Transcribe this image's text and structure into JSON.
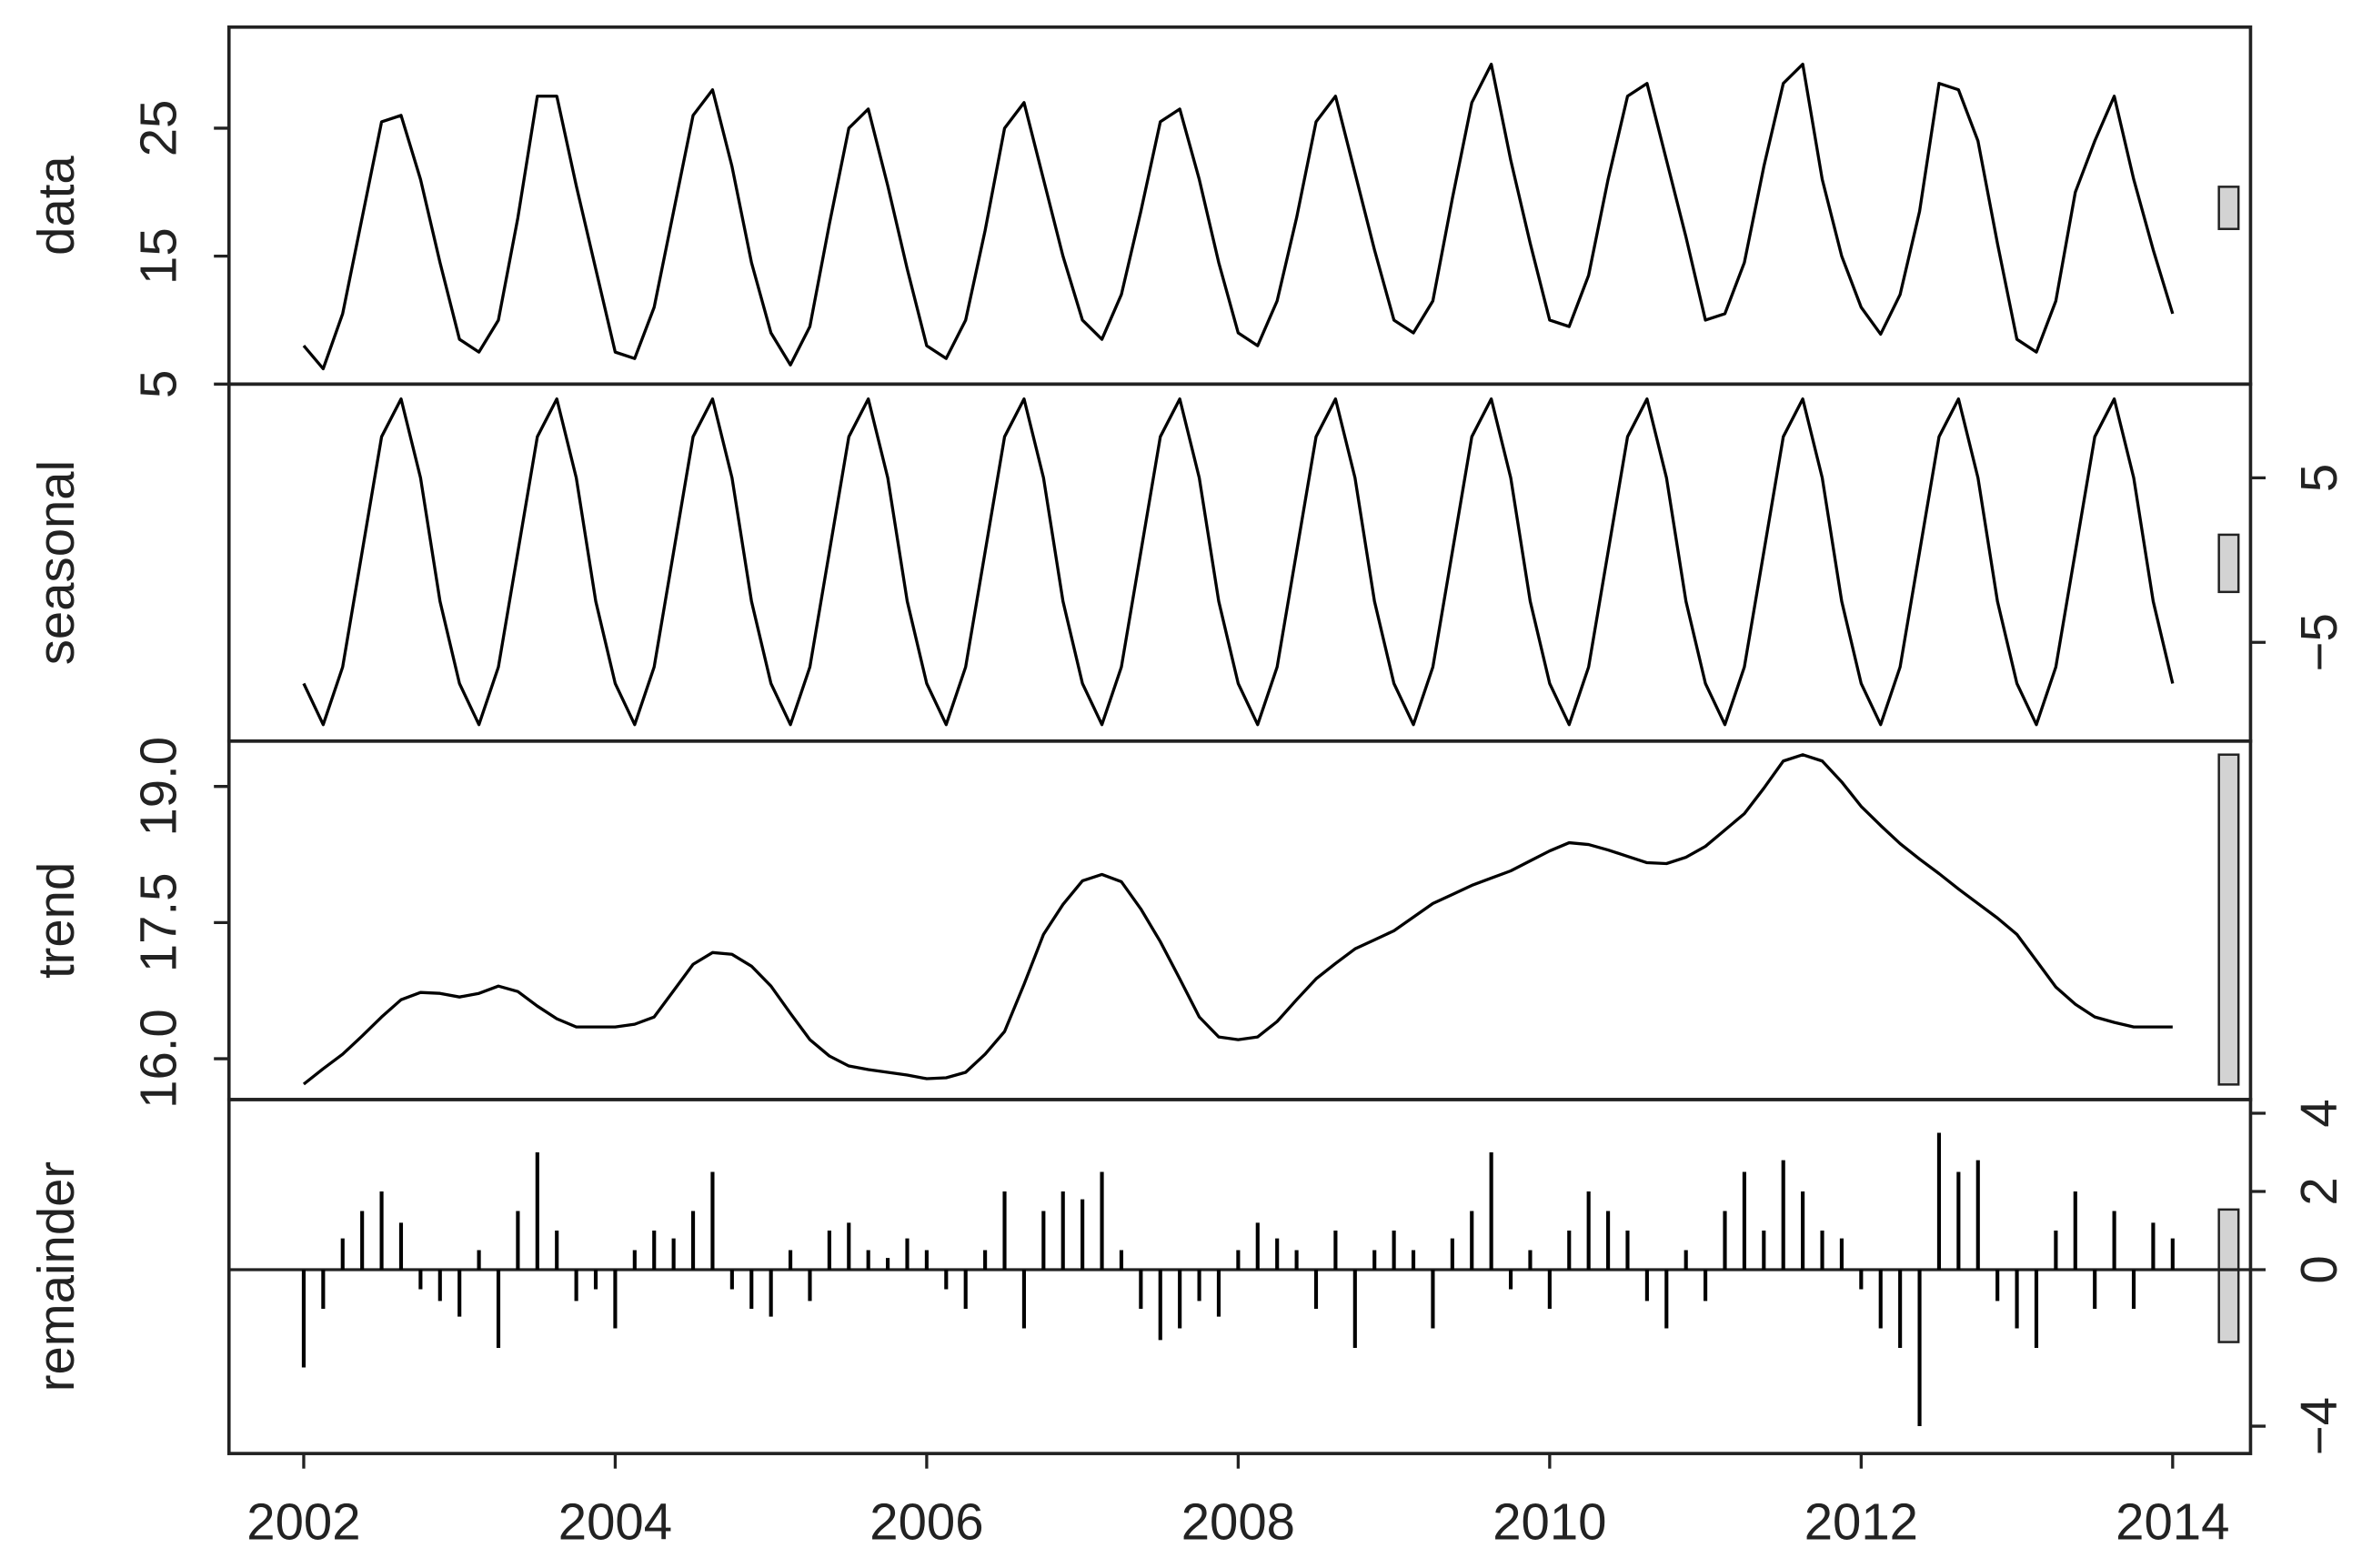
{
  "chart_data": {
    "type": "stl",
    "x": [
      2002,
      2002.125,
      2002.25,
      2002.375,
      2002.5,
      2002.625,
      2002.75,
      2002.875,
      2003,
      2003.125,
      2003.25,
      2003.375,
      2003.5,
      2003.625,
      2003.75,
      2003.875,
      2004,
      2004.125,
      2004.25,
      2004.375,
      2004.5,
      2004.625,
      2004.75,
      2004.875,
      2005,
      2005.125,
      2005.25,
      2005.375,
      2005.5,
      2005.625,
      2005.75,
      2005.875,
      2006,
      2006.125,
      2006.25,
      2006.375,
      2006.5,
      2006.625,
      2006.75,
      2006.875,
      2007,
      2007.125,
      2007.25,
      2007.375,
      2007.5,
      2007.625,
      2007.75,
      2007.875,
      2008,
      2008.125,
      2008.25,
      2008.375,
      2008.5,
      2008.625,
      2008.75,
      2008.875,
      2009,
      2009.125,
      2009.25,
      2009.375,
      2009.5,
      2009.625,
      2009.75,
      2009.875,
      2010,
      2010.125,
      2010.25,
      2010.375,
      2010.5,
      2010.625,
      2010.75,
      2010.875,
      2011,
      2011.125,
      2011.25,
      2011.375,
      2011.5,
      2011.625,
      2011.75,
      2011.875,
      2012,
      2012.125,
      2012.25,
      2012.375,
      2012.5,
      2012.625,
      2012.75,
      2012.875,
      2013,
      2013.125,
      2013.25,
      2013.375,
      2013.5,
      2013.625,
      2013.75,
      2013.875,
      2014
    ],
    "xlim": [
      2001.52,
      2014.5
    ],
    "xticks": [
      2002,
      2004,
      2006,
      2008,
      2010,
      2012,
      2014
    ],
    "color": "#000000",
    "panels": [
      {
        "label": "data",
        "axis_side": "left",
        "style": "line",
        "ylim": [
          5,
          32.9
        ],
        "yticks": [
          5,
          15,
          25
        ],
        "values": [
          8.0,
          6.2,
          10.5,
          18.0,
          25.5,
          26.0,
          21.0,
          14.5,
          8.5,
          7.5,
          10.0,
          18.0,
          27.5,
          27.5,
          20.5,
          14.0,
          7.5,
          7.0,
          11.0,
          18.5,
          26.0,
          28.0,
          22.0,
          14.5,
          9.0,
          6.5,
          9.5,
          17.5,
          25.0,
          26.5,
          20.5,
          14.0,
          8.0,
          7.0,
          10.0,
          17.0,
          25.0,
          27.0,
          21.0,
          15.0,
          10.0,
          8.5,
          12.0,
          18.5,
          25.5,
          26.5,
          21.0,
          14.5,
          9.0,
          8.0,
          11.5,
          18.0,
          25.5,
          27.5,
          21.5,
          15.5,
          10.0,
          9.0,
          11.5,
          19.5,
          27.0,
          30.0,
          22.5,
          16.0,
          10.0,
          9.5,
          13.5,
          21.0,
          27.5,
          28.5,
          22.5,
          16.5,
          10.0,
          10.5,
          14.5,
          22.0,
          28.5,
          30.0,
          21.0,
          15.0,
          11.0,
          8.9,
          12.0,
          18.5,
          28.5,
          28.0,
          24.0,
          16.0,
          8.5,
          7.5,
          11.5,
          20.0,
          24.0,
          27.5,
          21.0,
          15.5,
          10.5
        ]
      },
      {
        "label": "seasonal",
        "axis_side": "right",
        "style": "line",
        "ylim": [
          -11,
          10.7
        ],
        "yticks": [
          {
            "value": -5,
            "label": "−5"
          },
          5
        ],
        "values": [
          -7.5,
          -10.0,
          -6.5,
          0.5,
          7.5,
          9.8,
          5.0,
          -2.5,
          -7.5,
          -10.0,
          -6.5,
          0.5,
          7.5,
          9.8,
          5.0,
          -2.5,
          -7.5,
          -10.0,
          -6.5,
          0.5,
          7.5,
          9.8,
          5.0,
          -2.5,
          -7.5,
          -10.0,
          -6.5,
          0.5,
          7.5,
          9.8,
          5.0,
          -2.5,
          -7.5,
          -10.0,
          -6.5,
          0.5,
          7.5,
          9.8,
          5.0,
          -2.5,
          -7.5,
          -10.0,
          -6.5,
          0.5,
          7.5,
          9.8,
          5.0,
          -2.5,
          -7.5,
          -10.0,
          -6.5,
          0.5,
          7.5,
          9.8,
          5.0,
          -2.5,
          -7.5,
          -10.0,
          -6.5,
          0.5,
          7.5,
          9.8,
          5.0,
          -2.5,
          -7.5,
          -10.0,
          -6.5,
          0.5,
          7.5,
          9.8,
          5.0,
          -2.5,
          -7.5,
          -10.0,
          -6.5,
          0.5,
          7.5,
          9.8,
          5.0,
          -2.5,
          -7.5,
          -10.0,
          -6.5,
          0.5,
          7.5,
          9.8,
          5.0,
          -2.5,
          -7.5,
          -10.0,
          -6.5,
          0.5,
          7.5,
          9.8,
          5.0,
          -2.5,
          -7.5
        ]
      },
      {
        "label": "trend",
        "axis_side": "left",
        "style": "line",
        "ylim": [
          15.55,
          19.5
        ],
        "yticks": [
          {
            "value": 16,
            "label": "16.0"
          },
          17.5,
          {
            "value": 19,
            "label": "19.0"
          }
        ],
        "values": [
          15.72,
          15.89,
          16.05,
          16.25,
          16.46,
          16.65,
          16.73,
          16.72,
          16.68,
          16.72,
          16.8,
          16.74,
          16.58,
          16.44,
          16.35,
          16.35,
          16.35,
          16.38,
          16.46,
          16.75,
          17.04,
          17.17,
          17.15,
          17.02,
          16.8,
          16.5,
          16.21,
          16.03,
          15.92,
          15.88,
          15.85,
          15.82,
          15.78,
          15.79,
          15.85,
          16.05,
          16.3,
          16.82,
          17.37,
          17.7,
          17.96,
          18.03,
          17.95,
          17.65,
          17.29,
          16.88,
          16.46,
          16.24,
          16.21,
          16.24,
          16.41,
          16.65,
          16.88,
          17.05,
          17.21,
          17.31,
          17.41,
          17.56,
          17.71,
          17.81,
          17.91,
          17.99,
          18.07,
          18.18,
          18.29,
          18.38,
          18.36,
          18.3,
          18.23,
          18.16,
          18.15,
          18.22,
          18.34,
          18.52,
          18.7,
          18.98,
          19.28,
          19.35,
          19.28,
          19.05,
          18.78,
          18.57,
          18.37,
          18.2,
          18.04,
          17.87,
          17.71,
          17.55,
          17.37,
          17.08,
          16.79,
          16.6,
          16.46,
          16.4,
          16.35,
          16.35,
          16.35
        ]
      },
      {
        "label": "remainder",
        "axis_side": "right",
        "style": "h",
        "ylim": [
          -4.7,
          4.35
        ],
        "yticks": [
          {
            "value": -4,
            "label": "−4"
          },
          0,
          2,
          4
        ],
        "values": [
          -2.5,
          -1.0,
          0.8,
          1.5,
          2.0,
          1.2,
          -0.5,
          -0.8,
          -1.2,
          0.5,
          -2.0,
          1.5,
          3.0,
          1.0,
          -0.8,
          -0.5,
          -1.5,
          0.5,
          1.0,
          0.8,
          1.5,
          2.5,
          -0.5,
          -1.0,
          -1.2,
          0.5,
          -0.8,
          1.0,
          1.2,
          0.5,
          0.3,
          0.8,
          0.5,
          -0.5,
          -1.0,
          0.5,
          2.0,
          -1.5,
          1.5,
          2.0,
          1.8,
          2.5,
          0.5,
          -1.0,
          -1.8,
          -1.5,
          -0.8,
          -1.2,
          0.5,
          1.2,
          0.8,
          0.5,
          -1.0,
          1.0,
          -2.0,
          0.5,
          1.0,
          0.5,
          -1.5,
          0.8,
          1.5,
          3.0,
          -0.5,
          0.5,
          -1.0,
          1.0,
          2.0,
          1.5,
          1.0,
          -0.8,
          -1.5,
          0.5,
          -0.8,
          1.5,
          2.5,
          1.0,
          2.8,
          2.0,
          1.0,
          0.8,
          -0.5,
          -1.5,
          -2.0,
          -4.0,
          3.5,
          2.5,
          2.8,
          -0.8,
          -1.5,
          -2.0,
          1.0,
          2.0,
          -1.0,
          1.5,
          -1.0,
          1.2,
          0.8
        ]
      }
    ]
  }
}
